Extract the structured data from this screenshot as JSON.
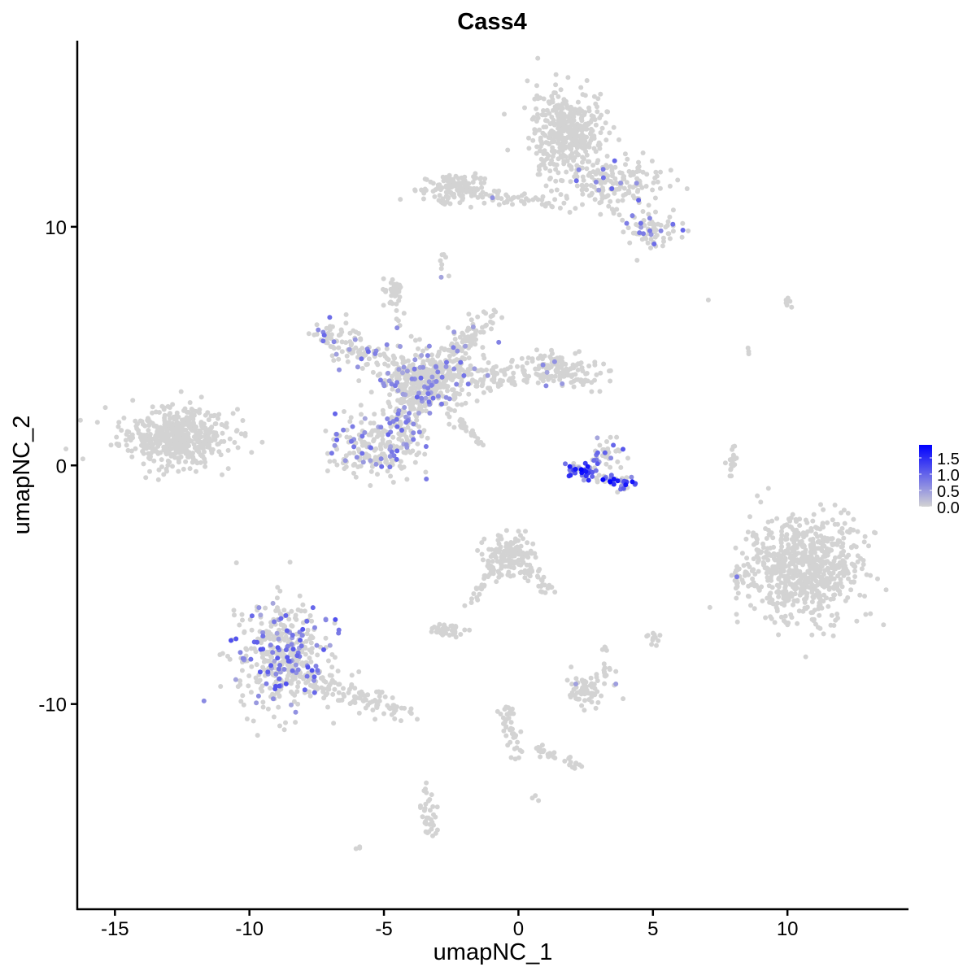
{
  "chart_data": {
    "type": "scatter",
    "title": "Cass4",
    "xlabel": "umapNC_1",
    "ylabel": "umapNC_2",
    "xlim": [
      -16.4,
      14.5
    ],
    "ylim": [
      -18.6,
      17.8
    ],
    "xticks": [
      -15,
      -10,
      -5,
      0,
      5,
      10
    ],
    "yticks": [
      -10,
      0,
      10
    ],
    "grid": false,
    "legend": {
      "placement": "right",
      "ticks": [
        0.0,
        0.5,
        1.0,
        1.5
      ],
      "tick_labels": [
        "0.0",
        "0.5",
        "1.0",
        "1.5"
      ],
      "max": 1.9,
      "low_color": "#D3D3D3",
      "high_color": "#0000FF"
    },
    "point_groups": [
      {
        "center": [
          -12.8,
          1.2
        ],
        "spread": [
          1.0,
          0.6
        ],
        "n": 520,
        "expr_frac": 0,
        "expr_max": 0
      },
      {
        "center": [
          1.8,
          13.9
        ],
        "spread": [
          0.7,
          0.9
        ],
        "n": 420,
        "expr_frac": 0,
        "expr_max": 0
      },
      {
        "center": [
          3.6,
          11.8
        ],
        "spread": [
          0.9,
          0.5
        ],
        "n": 160,
        "expr_frac": 0.12,
        "expr_max": 1.0
      },
      {
        "center": [
          5.0,
          9.8
        ],
        "spread": [
          0.5,
          0.4
        ],
        "n": 80,
        "expr_frac": 0.2,
        "expr_max": 1.0
      },
      {
        "center": [
          -2.4,
          11.6
        ],
        "spread": [
          0.6,
          0.3
        ],
        "n": 130,
        "expr_frac": 0,
        "expr_max": 0
      },
      {
        "from": [
          -1.2,
          11.3
        ],
        "to": [
          1.3,
          11.0
        ],
        "spread": 0.15,
        "n": 40,
        "expr_frac": 0.03,
        "expr_max": 0.8
      },
      {
        "center": [
          -3.5,
          3.5
        ],
        "spread": [
          0.9,
          0.8
        ],
        "n": 260,
        "expr_frac": 0.18,
        "expr_max": 0.9
      },
      {
        "from": [
          -3.5,
          3.5
        ],
        "to": [
          -7.3,
          5.6
        ],
        "spread": 0.35,
        "n": 170,
        "expr_frac": 0.2,
        "expr_max": 1.0
      },
      {
        "from": [
          -3.5,
          3.5
        ],
        "to": [
          -1.1,
          6.2
        ],
        "spread": 0.3,
        "n": 120,
        "expr_frac": 0.05,
        "expr_max": 0.8
      },
      {
        "from": [
          -3.5,
          3.5
        ],
        "to": [
          1.8,
          4.1
        ],
        "spread": 0.35,
        "n": 180,
        "expr_frac": 0.05,
        "expr_max": 0.8
      },
      {
        "center": [
          1.8,
          4.0
        ],
        "spread": [
          0.6,
          0.4
        ],
        "n": 90,
        "expr_frac": 0,
        "expr_max": 0
      },
      {
        "center": [
          -5.2,
          0.8
        ],
        "spread": [
          0.9,
          0.6
        ],
        "n": 200,
        "expr_frac": 0.2,
        "expr_max": 1.0
      },
      {
        "from": [
          -3.5,
          3.5
        ],
        "to": [
          -4.6,
          1.0
        ],
        "spread": 0.35,
        "n": 100,
        "expr_frac": 0.15,
        "expr_max": 1.0
      },
      {
        "from": [
          -2.6,
          2.2
        ],
        "to": [
          -1.2,
          0.8
        ],
        "spread": 0.08,
        "n": 30,
        "expr_frac": 0,
        "expr_max": 0
      },
      {
        "from": [
          -4.6,
          6.0
        ],
        "to": [
          -4.6,
          7.6
        ],
        "spread": 0.15,
        "n": 25,
        "expr_frac": 0,
        "expr_max": 0
      },
      {
        "center": [
          3.3,
          0.4
        ],
        "spread": [
          0.3,
          0.4
        ],
        "n": 40,
        "expr_frac": 0.25,
        "expr_max": 1.2
      },
      {
        "from": [
          1.9,
          -0.1
        ],
        "to": [
          4.3,
          -0.9
        ],
        "spread": 0.15,
        "n": 90,
        "expr_frac": 0.6,
        "expr_max": 1.9
      },
      {
        "center": [
          10.6,
          -4.3
        ],
        "spread": [
          1.05,
          1.1
        ],
        "n": 700,
        "expr_frac": 0,
        "expr_max": 0
      },
      {
        "center": [
          8.3,
          -4.7
        ],
        "spread": [
          0.2,
          0.4
        ],
        "n": 25,
        "expr_frac": 0.04,
        "expr_max": 0.8
      },
      {
        "center": [
          -8.8,
          -8.0
        ],
        "spread": [
          0.85,
          1.1
        ],
        "n": 430,
        "expr_frac": 0.22,
        "expr_max": 1.2
      },
      {
        "from": [
          -8.0,
          -9.0
        ],
        "to": [
          -4.0,
          -10.4
        ],
        "spread": 0.3,
        "n": 120,
        "expr_frac": 0,
        "expr_max": 0
      },
      {
        "center": [
          -0.3,
          -3.8
        ],
        "spread": [
          0.45,
          0.45
        ],
        "n": 150,
        "expr_frac": 0,
        "expr_max": 0
      },
      {
        "from": [
          0.3,
          -4.2
        ],
        "to": [
          1.2,
          -5.5
        ],
        "spread": 0.15,
        "n": 30,
        "expr_frac": 0,
        "expr_max": 0
      },
      {
        "from": [
          -0.9,
          -4.2
        ],
        "to": [
          -1.8,
          -6.0
        ],
        "spread": 0.15,
        "n": 25,
        "expr_frac": 0,
        "expr_max": 0
      },
      {
        "center": [
          -2.6,
          -6.9
        ],
        "spread": [
          0.3,
          0.15
        ],
        "n": 40,
        "expr_frac": 0,
        "expr_max": 0
      },
      {
        "center": [
          2.6,
          -9.3
        ],
        "spread": [
          0.45,
          0.35
        ],
        "n": 70,
        "expr_frac": 0.04,
        "expr_max": 0.8
      },
      {
        "from": [
          3.2,
          -7.6
        ],
        "to": [
          3.4,
          -8.8
        ],
        "spread": 0.1,
        "n": 12,
        "expr_frac": 0,
        "expr_max": 0
      },
      {
        "from": [
          -0.5,
          -10.2
        ],
        "to": [
          -0.1,
          -12.2
        ],
        "spread": 0.15,
        "n": 40,
        "expr_frac": 0,
        "expr_max": 0
      },
      {
        "from": [
          0.5,
          -11.8
        ],
        "to": [
          2.4,
          -12.6
        ],
        "spread": 0.15,
        "n": 30,
        "expr_frac": 0,
        "expr_max": 0
      },
      {
        "from": [
          -3.5,
          -13.6
        ],
        "to": [
          -3.3,
          -15.6
        ],
        "spread": 0.15,
        "n": 35,
        "expr_frac": 0,
        "expr_max": 0
      },
      {
        "from": [
          8.0,
          0.8
        ],
        "to": [
          7.9,
          -0.4
        ],
        "spread": 0.08,
        "n": 20,
        "expr_frac": 0,
        "expr_max": 0
      },
      {
        "center": [
          5.0,
          -7.2
        ],
        "spread": [
          0.15,
          0.15
        ],
        "n": 12,
        "expr_frac": 0,
        "expr_max": 0
      },
      {
        "center": [
          -4.6,
          7.4
        ],
        "spread": [
          0.2,
          0.15
        ],
        "n": 20,
        "expr_frac": 0,
        "expr_max": 0
      },
      {
        "center": [
          -2.8,
          8.7
        ],
        "spread": [
          0.1,
          0.3
        ],
        "n": 8,
        "expr_frac": 0.1,
        "expr_max": 0.8
      },
      {
        "center": [
          9.9,
          6.8
        ],
        "spread": [
          0.2,
          0.15
        ],
        "n": 6,
        "expr_frac": 0,
        "expr_max": 0
      },
      {
        "center": [
          8.5,
          4.8
        ],
        "spread": [
          0.1,
          0.1
        ],
        "n": 3,
        "expr_frac": 0,
        "expr_max": 0
      },
      {
        "center": [
          7.0,
          6.9
        ],
        "spread": [
          0.05,
          0.05
        ],
        "n": 1,
        "expr_frac": 0,
        "expr_max": 0
      },
      {
        "center": [
          -6.0,
          -16.0
        ],
        "spread": [
          0.08,
          0.08
        ],
        "n": 3,
        "expr_frac": 0,
        "expr_max": 0
      },
      {
        "center": [
          0.6,
          -13.9
        ],
        "spread": [
          0.08,
          0.08
        ],
        "n": 3,
        "expr_frac": 0,
        "expr_max": 0
      }
    ]
  }
}
